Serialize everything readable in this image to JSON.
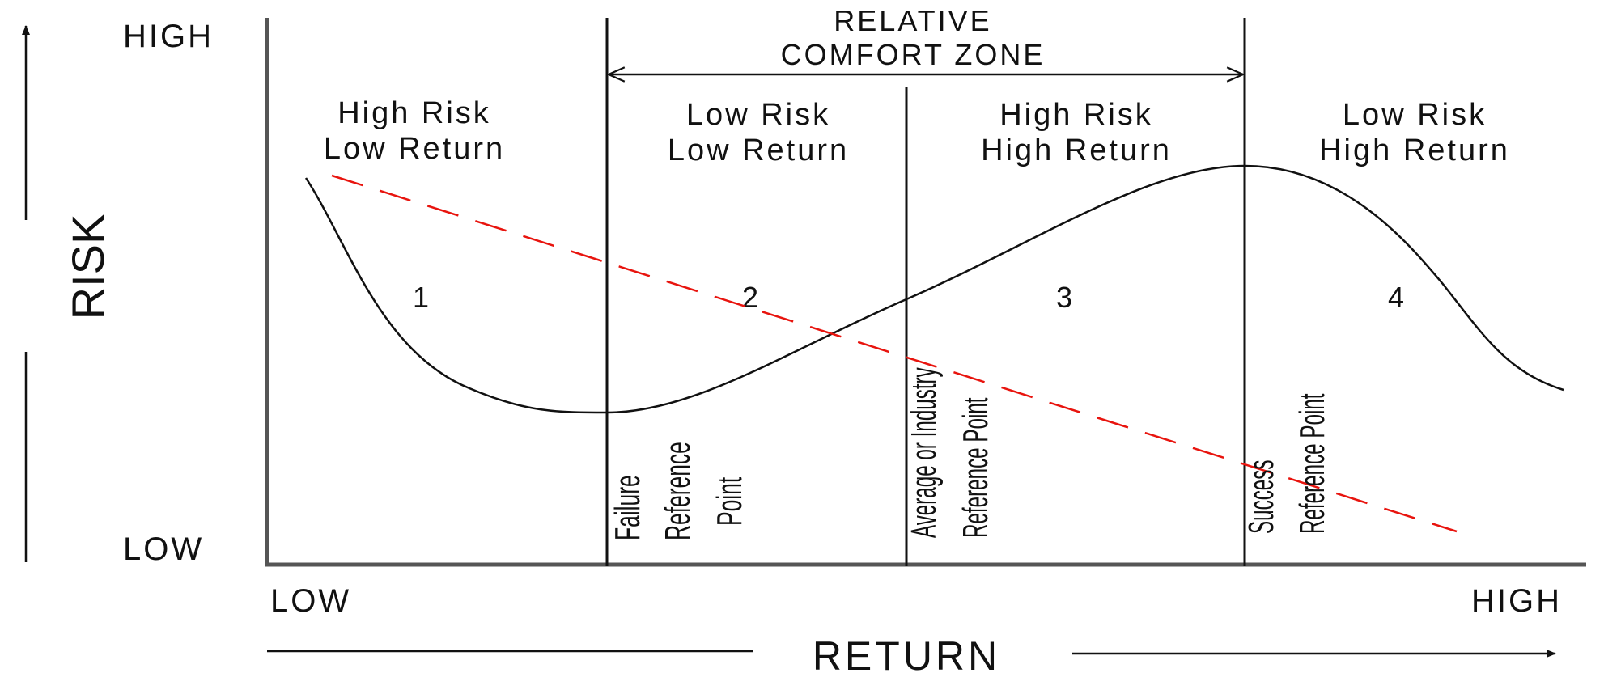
{
  "y_axis": {
    "title": "RISK",
    "high_label": "HIGH",
    "low_label": "LOW"
  },
  "x_axis": {
    "title": "RETURN",
    "low_label": "LOW",
    "high_label": "HIGH"
  },
  "comfort_zone": {
    "line1": "RELATIVE",
    "line2": "COMFORT ZONE"
  },
  "quadrants": [
    {
      "line1": "High Risk",
      "line2": "Low Return",
      "number": "1"
    },
    {
      "line1": "Low Risk",
      "line2": "Low Return",
      "number": "2"
    },
    {
      "line1": "High Risk",
      "line2": "High Return",
      "number": "3"
    },
    {
      "line1": "Low Risk",
      "line2": "High Return",
      "number": "4"
    }
  ],
  "reference_points": {
    "failure": [
      "Failure",
      "Reference",
      "Point"
    ],
    "average": [
      "Average or Industry",
      "Reference Point"
    ],
    "success": [
      "Success",
      "Reference Point"
    ]
  },
  "colors": {
    "line": "#111111",
    "axis": "#555555",
    "dashed_trend": "#e8140e",
    "text": "#111111"
  }
}
